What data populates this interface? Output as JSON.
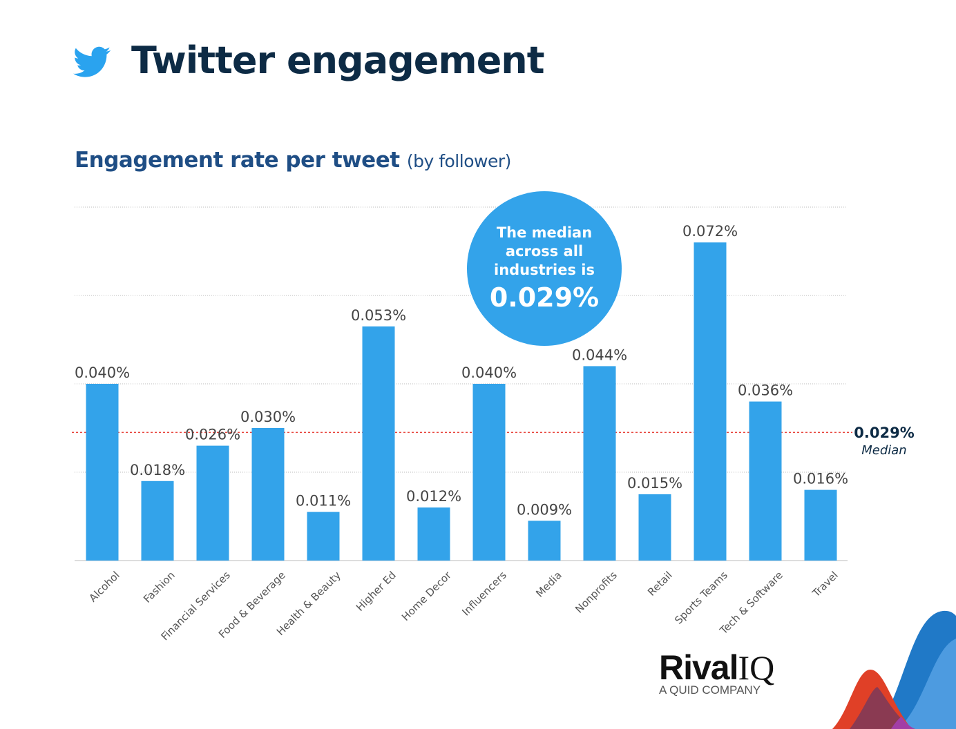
{
  "header": {
    "title": "Twitter engagement",
    "icon": "twitter-bird-icon"
  },
  "subtitle": {
    "main": "Engagement rate per tweet",
    "qualifier": "(by follower)"
  },
  "callout": {
    "line1": "The median",
    "line2": "across all",
    "line3": "industries is",
    "value": "0.029%"
  },
  "median_label": {
    "value": "0.029%",
    "label": "Median"
  },
  "logo": {
    "name": "Rival",
    "name2": "IQ",
    "tagline": "A QUID COMPANY"
  },
  "colors": {
    "bar": "#33a3ea",
    "median_line": "#e8453c",
    "title": "#0d2b45",
    "subtitle": "#1f4e85"
  },
  "chart_data": {
    "type": "bar",
    "title": "Engagement rate per tweet (by follower)",
    "categories": [
      "Alcohol",
      "Fashion",
      "Financial Services",
      "Food & Beverage",
      "Health & Beauty",
      "Higher Ed",
      "Home Decor",
      "Influencers",
      "Media",
      "Nonprofits",
      "Retail",
      "Sports Teams",
      "Tech & Software",
      "Travel"
    ],
    "values": [
      0.04,
      0.018,
      0.026,
      0.03,
      0.011,
      0.053,
      0.012,
      0.04,
      0.009,
      0.044,
      0.015,
      0.072,
      0.036,
      0.016
    ],
    "data_labels": [
      "0.040%",
      "0.018%",
      "0.026%",
      "0.030%",
      "0.011%",
      "0.053%",
      "0.012%",
      "0.040%",
      "0.009%",
      "0.044%",
      "0.015%",
      "0.072%",
      "0.036%",
      "0.016%"
    ],
    "unit": "%",
    "ylim": [
      0,
      0.08
    ],
    "gridlines": [
      0,
      0.02,
      0.04,
      0.06,
      0.08
    ],
    "grid": true,
    "reference_line": {
      "value": 0.029,
      "label": "Median",
      "style": "dotted"
    }
  }
}
